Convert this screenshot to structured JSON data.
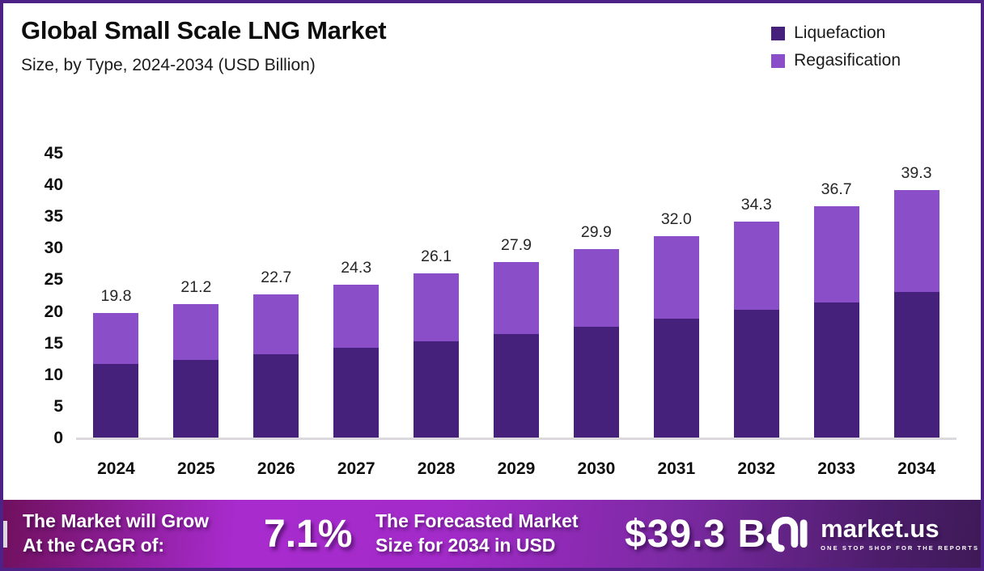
{
  "header": {
    "title": "Global Small Scale LNG Market",
    "subtitle": "Size, by Type, 2024-2034 (USD Billion)"
  },
  "legend": [
    {
      "label": "Liquefaction",
      "color": "#45217C"
    },
    {
      "label": "Regasification",
      "color": "#8A4FC8"
    }
  ],
  "chart_data": {
    "type": "bar",
    "stacked": true,
    "title": "Global Small Scale LNG Market Size, by Type, 2024-2034 (USD Billion)",
    "categories": [
      "2024",
      "2025",
      "2026",
      "2027",
      "2028",
      "2029",
      "2030",
      "2031",
      "2032",
      "2033",
      "2034"
    ],
    "series": [
      {
        "name": "Liquefaction",
        "color": "#45217C",
        "values": [
          11.7,
          12.4,
          13.3,
          14.3,
          15.4,
          16.5,
          17.7,
          18.9,
          20.3,
          21.5,
          23.1
        ]
      },
      {
        "name": "Regasification",
        "color": "#8A4FC8",
        "values": [
          8.1,
          8.8,
          9.4,
          10.0,
          10.7,
          11.4,
          12.2,
          13.1,
          14.0,
          15.2,
          16.2
        ]
      }
    ],
    "totals": [
      19.8,
      21.2,
      22.7,
      24.3,
      26.1,
      27.9,
      29.9,
      32.0,
      34.3,
      36.7,
      39.3
    ],
    "total_labels": [
      "19.8",
      "21.2",
      "22.7",
      "24.3",
      "26.1",
      "27.9",
      "29.9",
      "32.0",
      "34.3",
      "36.7",
      "39.3"
    ],
    "xlabel": "",
    "ylabel": "",
    "ylim": [
      0,
      45
    ],
    "yticks": [
      45,
      40,
      35,
      30,
      25,
      20,
      15,
      10,
      5,
      0
    ],
    "grid": false,
    "legend_position": "top-right",
    "baseline_color": "#dbd8de"
  },
  "banner": {
    "cagr_label_line1": "The Market will Grow",
    "cagr_label_line2": "At the CAGR of:",
    "cagr_value": "7.1%",
    "forecast_label_line1": "The Forecasted Market",
    "forecast_label_line2": "Size for 2034 in USD",
    "forecast_value": "$39.3 B",
    "logo_name": "market.us",
    "logo_tagline": "ONE STOP SHOP FOR THE REPORTS"
  },
  "colors": {
    "frame_border": "#4E2187",
    "liquefaction": "#45217C",
    "regasification": "#8A4FC8",
    "banner_left": "#70105e",
    "banner_bright": "#A32BC9",
    "banner_right": "#3E1A57",
    "text_dark": "#0d0d0d"
  }
}
